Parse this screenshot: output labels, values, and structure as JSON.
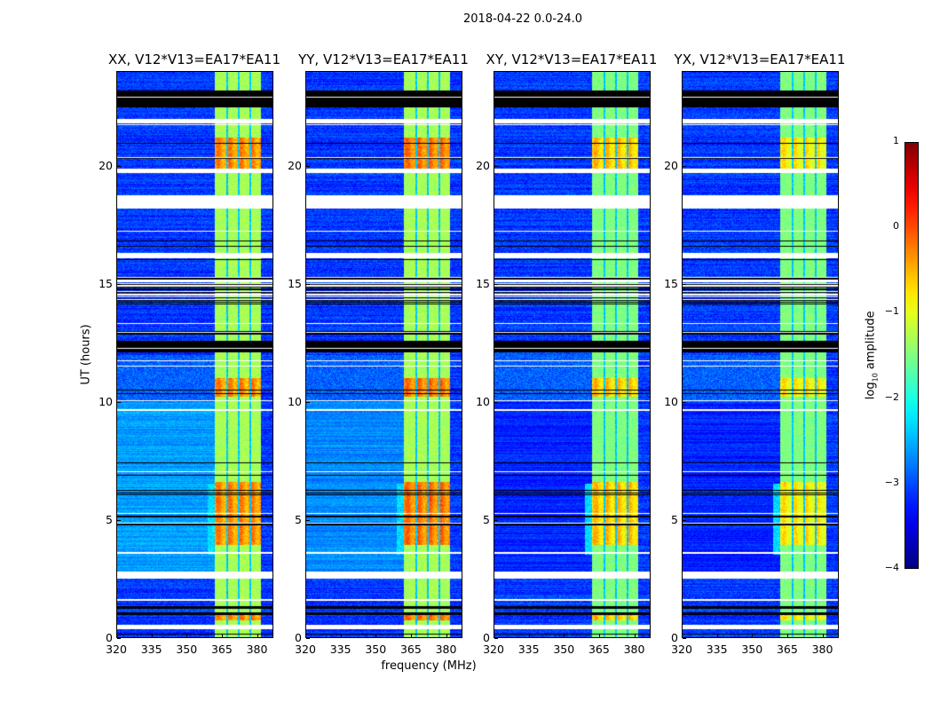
{
  "chart_data": {
    "type": "heatmap",
    "suptitle": "2018-04-22 0.0-24.0",
    "xlabel": "frequency (MHz)",
    "ylabel": "UT (hours)",
    "xlim": [
      320,
      387
    ],
    "ylim": [
      0,
      24
    ],
    "xticks": [
      "320",
      "335",
      "350",
      "365",
      "380"
    ],
    "xtick_values": [
      320,
      335,
      350,
      365,
      380
    ],
    "yticks": [
      "0",
      "5",
      "10",
      "15",
      "20"
    ],
    "ytick_values": [
      0,
      5,
      10,
      15,
      20
    ],
    "panels": [
      {
        "title": "XX, V12*V13=EA17*EA11",
        "pol": "XX",
        "bright_peak": -0.1,
        "bg_day_level": -2.6
      },
      {
        "title": "YY, V12*V13=EA17*EA11",
        "pol": "YY",
        "bright_peak": 0.0,
        "bg_day_level": -2.7
      },
      {
        "title": "XY, V12*V13=EA17*EA11",
        "pol": "XY",
        "bright_peak": -0.2,
        "bg_day_level": -3.2
      },
      {
        "title": "YX, V12*V13=EA17*EA11",
        "pol": "YX",
        "bright_peak": -0.4,
        "bg_day_level": -3.2
      }
    ],
    "signal_band_mhz": [
      362,
      382
    ],
    "subband_gaps_mhz": [
      367.5,
      372.5,
      377.5
    ],
    "bright_periods_hours": [
      [
        0.7,
        1.0
      ],
      [
        3.9,
        6.6
      ],
      [
        10.2,
        11.0
      ],
      [
        19.8,
        21.2
      ]
    ],
    "flagged_white_hours": [
      [
        0.34,
        0.52
      ],
      [
        1.55,
        1.62
      ],
      [
        2.5,
        2.77
      ],
      [
        3.55,
        3.6
      ],
      [
        9.6,
        9.7
      ],
      [
        16.1,
        16.3
      ],
      [
        17.2,
        17.25
      ],
      [
        18.2,
        18.75
      ],
      [
        19.7,
        19.9
      ],
      [
        21.8,
        22.0
      ]
    ],
    "flagged_black_hours": [
      [
        0.95,
        1.05
      ],
      [
        1.22,
        1.3
      ],
      [
        4.75,
        4.85
      ],
      [
        5.1,
        5.15
      ],
      [
        6.2,
        6.25
      ],
      [
        12.1,
        12.6
      ],
      [
        12.9,
        13.0
      ],
      [
        14.2,
        15.3
      ],
      [
        22.5,
        23.2
      ]
    ],
    "colorbar": {
      "label": "log",
      "label_sub": "10",
      "label_rest": " amplitude",
      "range": [
        -4,
        1
      ],
      "ticks": [
        "1",
        "0",
        "−1",
        "−2",
        "−3",
        "−4"
      ],
      "tick_values": [
        1,
        0,
        -1,
        -2,
        -3,
        -4
      ],
      "colormap": "jet"
    }
  }
}
